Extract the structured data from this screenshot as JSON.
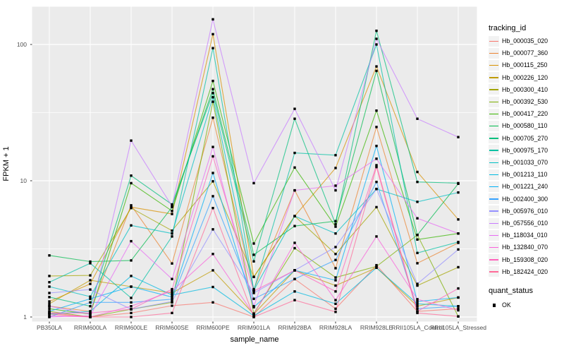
{
  "chart_data": {
    "type": "line",
    "title": "",
    "xlabel": "sample_name",
    "ylabel": "FPKM + 1",
    "y_scale": "log10",
    "y_ticks": [
      1,
      10,
      100
    ],
    "y_minor_ticks": [
      3.162,
      31.62
    ],
    "ylim": [
      0.93,
      190
    ],
    "grid": "white major+minor on grey panel",
    "legend_position": "right",
    "point_style": "small black square",
    "categories": [
      "PB350LA",
      "RRIM600LA",
      "RRIM600LE",
      "RRIM600SE",
      "RRIM600PE",
      "RRIM901LA",
      "RRIM928BA",
      "RRIM928LA",
      "RRIM928LE",
      "RRII105LA_Control",
      "RRII105LA_Stressed"
    ],
    "legend_title": "tracking_id",
    "series": [
      {
        "name": "Hb_000035_020",
        "color": "#F8766D",
        "values": [
          1.05,
          1.0,
          1.07,
          1.21,
          1.28,
          1.0,
          1.9,
          1.15,
          2.4,
          1.1,
          1.15
        ]
      },
      {
        "name": "Hb_000077_360",
        "color": "#EA8331",
        "values": [
          1.2,
          1.1,
          6.6,
          2.47,
          29,
          1.6,
          8.5,
          2.28,
          24.8,
          2.48,
          3.5
        ]
      },
      {
        "name": "Hb_000115_250",
        "color": "#D89000",
        "values": [
          1.3,
          1.75,
          6.4,
          5.7,
          119,
          1.97,
          5.5,
          12.4,
          69,
          11.6,
          5.2
        ]
      },
      {
        "name": "Hb_000226_120",
        "color": "#C09B00",
        "values": [
          1.25,
          1.86,
          1.67,
          1.5,
          2.2,
          1.05,
          2.2,
          1.7,
          2.3,
          1.2,
          1.39
        ]
      },
      {
        "name": "Hb_000300_410",
        "color": "#A3A500",
        "values": [
          2.0,
          2.02,
          6.3,
          4.3,
          9.9,
          1.97,
          5.5,
          2.9,
          6.4,
          1.7,
          2.32
        ]
      },
      {
        "name": "Hb_000392_530",
        "color": "#7CAE00",
        "values": [
          1.1,
          1.0,
          1.14,
          1.28,
          38,
          1.06,
          3.2,
          1.95,
          2.35,
          4.0,
          1.01
        ]
      },
      {
        "name": "Hb_000417_220",
        "color": "#39B600",
        "values": [
          1.15,
          1.05,
          9.6,
          6.0,
          54,
          3.46,
          12.5,
          4.6,
          32.7,
          3.7,
          4.1
        ]
      },
      {
        "name": "Hb_000580_110",
        "color": "#00BB4E",
        "values": [
          2.83,
          2.55,
          2.6,
          6.4,
          47,
          2.86,
          4.65,
          5.05,
          64,
          4.0,
          9.5
        ]
      },
      {
        "name": "Hb_000705_270",
        "color": "#00BF7D",
        "values": [
          1.4,
          1.2,
          10.9,
          6.7,
          44,
          2.56,
          28.5,
          4.8,
          126,
          9.8,
          9.6
        ]
      },
      {
        "name": "Hb_000975_170",
        "color": "#00C1A3",
        "values": [
          1.8,
          2.48,
          1.38,
          3.9,
          94,
          1.57,
          16,
          15.4,
          100,
          2.95,
          3.55
        ]
      },
      {
        "name": "Hb_001033_070",
        "color": "#00BFC4",
        "values": [
          1.67,
          1.41,
          4.7,
          4.1,
          41,
          1.57,
          5.5,
          4.1,
          8.7,
          7.0,
          8.2
        ]
      },
      {
        "name": "Hb_001213_110",
        "color": "#00BAE0",
        "values": [
          1.05,
          1.1,
          2.0,
          1.45,
          1.66,
          1.02,
          1.54,
          1.25,
          2.3,
          1.25,
          1.2
        ]
      },
      {
        "name": "Hb_001221_240",
        "color": "#00B0F6",
        "values": [
          1.1,
          1.36,
          1.67,
          1.4,
          11.4,
          1.18,
          2.2,
          1.86,
          18,
          1.3,
          1.39
        ]
      },
      {
        "name": "Hb_002400_300",
        "color": "#35A2FF",
        "values": [
          1.0,
          1.28,
          1.28,
          1.35,
          7.7,
          1.36,
          1.9,
          2.62,
          9.8,
          1.15,
          1.2
        ]
      },
      {
        "name": "Hb_005976_010",
        "color": "#9590FF",
        "values": [
          1.5,
          1.59,
          1.14,
          1.3,
          4.4,
          1.5,
          2.2,
          3.26,
          8.7,
          1.75,
          3.13
        ]
      },
      {
        "name": "Hb_057556_010",
        "color": "#C77CFF",
        "values": [
          1.2,
          1.05,
          19.7,
          6.5,
          153,
          9.6,
          33.7,
          8.5,
          110,
          28.5,
          20.9
        ]
      },
      {
        "name": "Hb_118034_010",
        "color": "#E76BF3",
        "values": [
          1.0,
          1.02,
          3.6,
          1.9,
          17.7,
          1.2,
          8.5,
          9.2,
          14.5,
          5.3,
          4.1
        ]
      },
      {
        "name": "Hb_132840_070",
        "color": "#FA62DB",
        "values": [
          1.02,
          1.0,
          1.2,
          1.55,
          2.9,
          1.04,
          3.5,
          1.33,
          3.9,
          1.35,
          1.12
        ]
      },
      {
        "name": "Hb_159308_020",
        "color": "#FF62BC",
        "values": [
          1.07,
          1.07,
          1.14,
          1.6,
          15.1,
          1.55,
          2.2,
          1.54,
          13,
          1.1,
          1.62
        ]
      },
      {
        "name": "Hb_182424_020",
        "color": "#FF6A98",
        "values": [
          1.07,
          1.0,
          1.0,
          1.07,
          6.3,
          1.0,
          1.33,
          1.09,
          12.6,
          1.07,
          1.01
        ]
      }
    ],
    "legend2_title": "quant_status",
    "legend2_items": [
      {
        "label": "OK",
        "key": "black-square"
      }
    ]
  },
  "style": {
    "panel_bg": "#EBEBEB",
    "grid_color": "#FFFFFF",
    "tick_label_color": "#4D4D4D",
    "point_color": "#000000",
    "legend_key_bg": "#F2F2F2"
  }
}
